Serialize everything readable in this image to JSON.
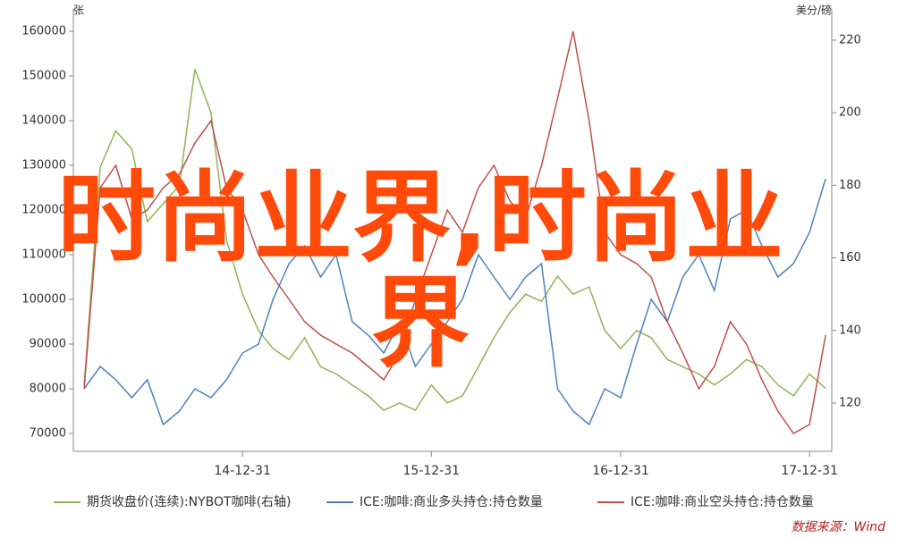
{
  "chart_data": {
    "type": "line",
    "y_label": "张",
    "y2_label": "美分/磅",
    "x": [
      "14-02-28",
      "14-03-31",
      "14-04-30",
      "14-05-31",
      "14-06-30",
      "14-07-31",
      "14-08-31",
      "14-09-30",
      "14-10-31",
      "14-11-30",
      "14-12-31",
      "15-01-31",
      "15-02-28",
      "15-03-31",
      "15-04-30",
      "15-05-31",
      "15-06-30",
      "15-07-31",
      "15-08-31",
      "15-09-30",
      "15-10-31",
      "15-11-30",
      "15-12-31",
      "16-01-31",
      "16-02-29",
      "16-03-31",
      "16-04-30",
      "16-05-31",
      "16-06-30",
      "16-07-31",
      "16-08-31",
      "16-09-30",
      "16-10-31",
      "16-11-30",
      "16-12-31",
      "17-01-31",
      "17-02-28",
      "17-03-31",
      "17-04-30",
      "17-05-31",
      "17-06-30",
      "17-07-31",
      "17-08-31",
      "17-09-30",
      "17-10-31",
      "17-11-30",
      "17-12-31",
      "18-01-31"
    ],
    "xlim": [
      "14-02-07",
      "18-02-12"
    ],
    "xticks": [
      "14-12-31",
      "15-12-31",
      "16-12-31",
      "17-12-31"
    ],
    "ylim": [
      66000,
      165000
    ],
    "yticks": [
      70000,
      80000,
      90000,
      100000,
      110000,
      120000,
      130000,
      140000,
      150000,
      160000
    ],
    "y2lim": [
      106.7,
      228.6
    ],
    "y2ticks": [
      120,
      140,
      160,
      180,
      200,
      220
    ],
    "series": [
      {
        "name": "期货收盘价(连续):NYBOT咖啡(右轴)",
        "color": "#92b356",
        "axis": "y2",
        "values": [
          125,
          185,
          195,
          190,
          170,
          175,
          180,
          212,
          200,
          165,
          150,
          140,
          135,
          132,
          138,
          130,
          128,
          125,
          122,
          118,
          120,
          118,
          125,
          120,
          122,
          130,
          138,
          145,
          150,
          148,
          155,
          150,
          152,
          140,
          135,
          140,
          138,
          132,
          130,
          128,
          125,
          128,
          132,
          130,
          125,
          122,
          128,
          124
        ]
      },
      {
        "name": "ICE:咖啡:商业多头持仓:持仓数量",
        "color": "#4f81bd",
        "values": [
          80000,
          85000,
          82000,
          78000,
          82000,
          72000,
          75000,
          80000,
          78000,
          82000,
          88000,
          90000,
          100000,
          108000,
          112000,
          105000,
          110000,
          95000,
          92000,
          88000,
          95000,
          85000,
          90000,
          95000,
          100000,
          110000,
          105000,
          100000,
          105000,
          108000,
          80000,
          75000,
          72000,
          80000,
          78000,
          90000,
          100000,
          95000,
          105000,
          110000,
          102000,
          118000,
          120000,
          112000,
          105000,
          108000,
          115000,
          127000
        ]
      },
      {
        "name": "ICE:咖啡:商业空头持仓:持仓数量",
        "color": "#c0504d",
        "values": [
          80000,
          125000,
          130000,
          118000,
          120000,
          125000,
          128000,
          135000,
          140000,
          125000,
          120000,
          110000,
          105000,
          100000,
          95000,
          92000,
          90000,
          88000,
          85000,
          82000,
          88000,
          100000,
          110000,
          120000,
          115000,
          125000,
          130000,
          122000,
          118000,
          130000,
          145000,
          160000,
          140000,
          115000,
          110000,
          108000,
          105000,
          95000,
          88000,
          80000,
          85000,
          95000,
          90000,
          82000,
          75000,
          70000,
          72000,
          92000
        ]
      }
    ],
    "source": "数据来源：Wind",
    "watermark": "时尚业界,时尚业界"
  }
}
